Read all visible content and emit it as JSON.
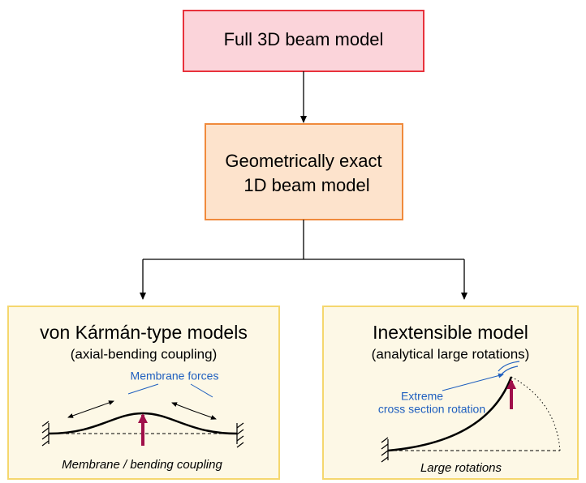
{
  "nodes": [
    {
      "label": "Full 3D beam model"
    },
    {
      "label": [
        "Geometrically exact",
        "1D beam model"
      ]
    },
    {
      "title": "von Kármán-type models",
      "subtitle": "(axial-bending coupling)",
      "annotation": "Membrane forces",
      "caption": "Membrane / bending coupling"
    },
    {
      "title": "Inextensible model",
      "subtitle": "(analytical large rotations)",
      "annotation": [
        "Extreme",
        "cross section rotation"
      ],
      "caption": "Large rotations"
    }
  ]
}
